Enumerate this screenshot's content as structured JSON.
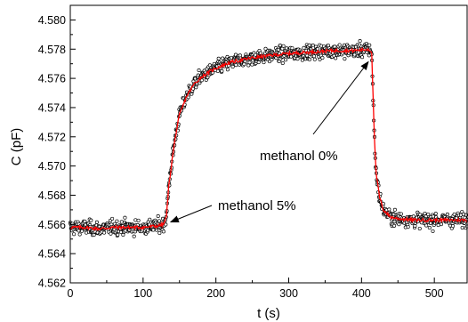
{
  "chart_data": {
    "type": "scatter",
    "title": "",
    "xlabel": "t (s)",
    "ylabel": "C (pF)",
    "xlim": [
      0,
      545
    ],
    "ylim": [
      4.562,
      4.581
    ],
    "grid": false,
    "legend": "none",
    "x_ticks": [
      {
        "value": 0,
        "label": "0"
      },
      {
        "value": 100,
        "label": "100"
      },
      {
        "value": 200,
        "label": "200"
      },
      {
        "value": 300,
        "label": "300"
      },
      {
        "value": 400,
        "label": "400"
      },
      {
        "value": 500,
        "label": "500"
      }
    ],
    "y_ticks": [
      {
        "value": 4.562,
        "label": "4.562"
      },
      {
        "value": 4.564,
        "label": "4.564"
      },
      {
        "value": 4.566,
        "label": "4.566"
      },
      {
        "value": 4.568,
        "label": "4.568"
      },
      {
        "value": 4.57,
        "label": "4.570"
      },
      {
        "value": 4.572,
        "label": "4.572"
      },
      {
        "value": 4.574,
        "label": "4.574"
      },
      {
        "value": 4.576,
        "label": "4.576"
      },
      {
        "value": 4.578,
        "label": "4.578"
      },
      {
        "value": 4.58,
        "label": "4.580"
      }
    ],
    "series": [
      {
        "style": "scatter-open-circles",
        "color": "#000000",
        "sampling": "about 2 points per second, scattered about ±0.0007 pF around the fit",
        "x_range": [
          0,
          545
        ],
        "count": 1090
      },
      {
        "style": "line",
        "color": "#ff0000",
        "x": [
          0,
          20,
          40,
          60,
          80,
          100,
          120,
          128,
          132,
          135,
          140,
          145,
          150,
          160,
          170,
          180,
          200,
          220,
          250,
          280,
          300,
          330,
          360,
          390,
          410,
          414,
          416,
          418,
          420,
          425,
          430,
          440,
          450,
          470,
          500,
          520,
          545
        ],
        "y": [
          4.5658,
          4.5658,
          4.5657,
          4.5658,
          4.5658,
          4.5658,
          4.5659,
          4.566,
          4.5665,
          4.5685,
          4.5705,
          4.5722,
          4.5735,
          4.5748,
          4.5756,
          4.5761,
          4.5767,
          4.5771,
          4.5774,
          4.5776,
          4.5777,
          4.5778,
          4.5779,
          4.5779,
          4.578,
          4.5778,
          4.5745,
          4.5715,
          4.5695,
          4.5678,
          4.567,
          4.5665,
          4.5664,
          4.5663,
          4.5663,
          4.5663,
          4.5663
        ]
      }
    ],
    "annotations": [
      {
        "text": "methanol 5%",
        "arrow_to": {
          "x": 133,
          "y": 4.5658
        }
      },
      {
        "text": "methanol 0%",
        "arrow_to": {
          "x": 413,
          "y": 4.5775
        }
      }
    ],
    "colors": {
      "background": "#ffffff",
      "axis": "#000000",
      "points": "#000000",
      "fit": "#ff0000"
    }
  }
}
